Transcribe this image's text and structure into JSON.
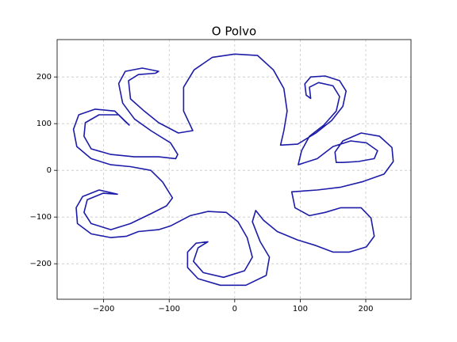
{
  "chart_data": {
    "type": "line",
    "title": "O Polvo",
    "x": [
      0,
      35,
      59,
      75,
      80,
      75,
      70,
      96,
      124,
      148,
      165,
      170,
      160,
      138,
      116,
      107,
      109,
      116,
      114,
      128,
      150,
      160,
      155,
      136,
      114,
      102,
      97,
      126,
      150,
      177,
      201,
      218,
      213,
      189,
      165,
      155,
      153,
      165,
      193,
      221,
      240,
      242,
      228,
      196,
      162,
      126,
      87,
      92,
      114,
      138,
      162,
      193,
      208,
      213,
      201,
      175,
      150,
      124,
      96,
      65,
      44,
      32,
      27,
      39,
      53,
      48,
      17,
      -22,
      -56,
      -72,
      -72,
      -59,
      -41,
      -56,
      -63,
      -48,
      -17,
      15,
      27,
      19,
      5,
      -13,
      -41,
      -68,
      -98,
      -116,
      -147,
      -165,
      -189,
      -219,
      -240,
      -242,
      -232,
      -207,
      -179,
      -201,
      -225,
      -230,
      -219,
      -189,
      -159,
      -128,
      -104,
      -95,
      -110,
      -128,
      -159,
      -189,
      -219,
      -241,
      -246,
      -238,
      -213,
      -183,
      -165,
      -161,
      -177,
      -207,
      -228,
      -230,
      -219,
      -189,
      -153,
      -116,
      -90,
      -87,
      -98,
      -128,
      -153,
      -171,
      -177,
      -167,
      -141,
      -116,
      -121,
      -147,
      -162,
      -159,
      -138,
      -116,
      -86,
      -64,
      -78,
      -78,
      -62,
      -34,
      0
    ],
    "series": [
      {
        "color": "#1c1ca8",
        "values": [
          249,
          246,
          215,
          175,
          127,
          85,
          54,
          56,
          80,
          107,
          137,
          170,
          192,
          202,
          200,
          185,
          161,
          154,
          178,
          188,
          181,
          158,
          127,
          97,
          73,
          42,
          12,
          25,
          51,
          63,
          59,
          42,
          25,
          19,
          17,
          17,
          39,
          63,
          80,
          73,
          49,
          19,
          -8,
          -24,
          -36,
          -42,
          -46,
          -80,
          -97,
          -90,
          -80,
          -80,
          -102,
          -141,
          -164,
          -175,
          -175,
          -161,
          -149,
          -131,
          -107,
          -86,
          -110,
          -153,
          -186,
          -225,
          -246,
          -246,
          -232,
          -208,
          -175,
          -156,
          -153,
          -166,
          -195,
          -219,
          -229,
          -215,
          -186,
          -144,
          -110,
          -90,
          -88,
          -97,
          -119,
          -127,
          -131,
          -141,
          -144,
          -136,
          -114,
          -80,
          -56,
          -42,
          -51,
          -49,
          -63,
          -90,
          -114,
          -127,
          -114,
          -93,
          -76,
          -59,
          -25,
          0,
          8,
          12,
          25,
          51,
          88,
          119,
          131,
          127,
          102,
          97,
          119,
          119,
          102,
          73,
          46,
          34,
          29,
          29,
          25,
          34,
          59,
          85,
          110,
          144,
          186,
          212,
          219,
          212,
          208,
          205,
          192,
          153,
          127,
          102,
          80,
          85,
          127,
          178,
          215,
          242,
          249
        ]
      }
    ],
    "xlim": [
      -271,
      269
    ],
    "ylim": [
      -276,
      280
    ],
    "xticks": [
      {
        "value": -200,
        "label": "−200"
      },
      {
        "value": -100,
        "label": "−100"
      },
      0,
      100,
      200
    ],
    "yticks": [
      {
        "value": -200,
        "label": "−200"
      },
      {
        "value": -100,
        "label": "−100"
      },
      0,
      100,
      200
    ],
    "grid": true
  }
}
